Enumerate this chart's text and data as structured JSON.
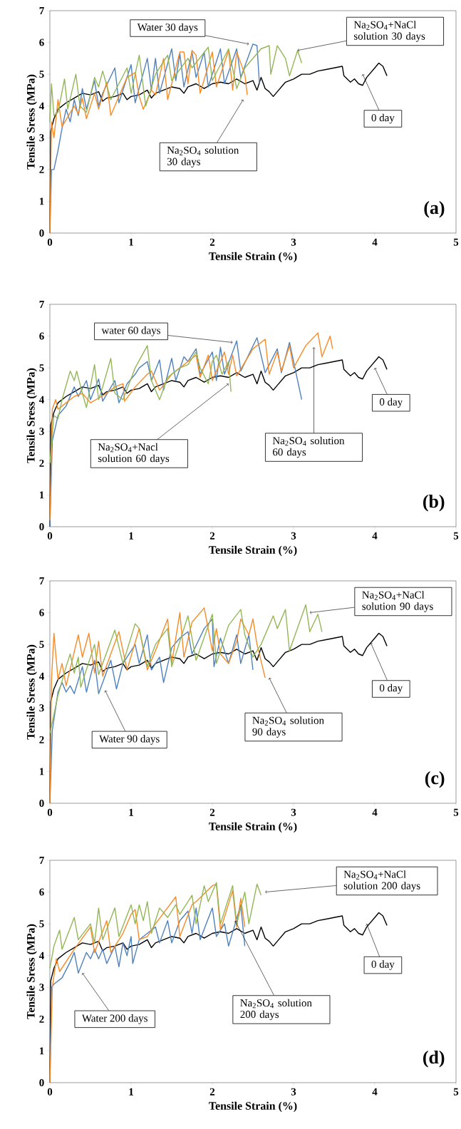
{
  "chart_data": [
    {
      "type": "line",
      "xlabel": "Tensile Strain (%)",
      "ylabel": "Tensile Sress (MPa)",
      "xlim": [
        0,
        5
      ],
      "ylim": [
        0,
        7
      ],
      "xticks": [
        0,
        1,
        2,
        3,
        4,
        5
      ],
      "yticks": [
        0,
        1,
        2,
        3,
        4,
        5,
        6,
        7
      ],
      "marker": "none",
      "series": [
        {
          "color": "#000000",
          "x": [
            0,
            0.01,
            0.05,
            0.1,
            0.2,
            0.3,
            0.4,
            0.5,
            0.6,
            0.65,
            0.7,
            0.8,
            0.9,
            0.95,
            1.0,
            1.1,
            1.2,
            1.25,
            1.3,
            1.4,
            1.5,
            1.6,
            1.65,
            1.7,
            1.8,
            1.9,
            2.0,
            2.1,
            2.2,
            2.3,
            2.4,
            2.5,
            2.55,
            2.6,
            2.65,
            2.7,
            2.75,
            2.8,
            2.9,
            3.0,
            3.1,
            3.2,
            3.3,
            3.4,
            3.5,
            3.6,
            3.62,
            3.7,
            3.75,
            3.8,
            3.85,
            3.9,
            4.0,
            4.05,
            4.1,
            4.15
          ],
          "values": [
            0,
            3.2,
            3.6,
            3.9,
            4.1,
            4.25,
            4.4,
            4.35,
            4.45,
            4.15,
            4.25,
            4.3,
            4.4,
            4.2,
            4.3,
            4.35,
            4.5,
            4.25,
            4.4,
            4.5,
            4.6,
            4.55,
            4.4,
            4.6,
            4.7,
            4.55,
            4.7,
            4.75,
            4.7,
            4.85,
            4.7,
            4.8,
            4.5,
            4.9,
            4.55,
            4.45,
            4.3,
            4.45,
            4.75,
            4.85,
            5.0,
            5.0,
            5.1,
            5.15,
            5.2,
            5.25,
            4.95,
            4.75,
            4.85,
            4.7,
            4.65,
            4.9,
            5.2,
            5.35,
            5.25,
            4.95
          ]
        },
        {
          "color": "#4f81bd",
          "x": [
            0,
            0.02,
            0.05,
            0.1,
            0.15,
            0.2,
            0.25,
            0.3,
            0.35,
            0.4,
            0.45,
            0.55,
            0.6,
            0.65,
            0.8,
            0.85,
            1.0,
            1.05,
            1.2,
            1.25,
            1.3,
            1.35,
            1.5,
            1.55,
            1.6,
            1.65,
            1.75,
            1.8,
            1.9,
            1.95,
            2.1,
            2.15,
            2.3,
            2.35,
            2.5,
            2.55,
            2.58
          ],
          "values": [
            0,
            2.0,
            2.0,
            2.6,
            3.3,
            3.9,
            3.5,
            4.2,
            3.7,
            4.55,
            3.9,
            4.8,
            4.0,
            4.4,
            5.2,
            4.1,
            5.3,
            4.1,
            5.5,
            4.5,
            5.5,
            4.4,
            5.8,
            4.8,
            5.65,
            4.6,
            5.7,
            4.9,
            5.7,
            4.6,
            5.8,
            4.7,
            5.8,
            4.9,
            5.95,
            5.9,
            4.7
          ]
        },
        {
          "color": "#f68b28",
          "x": [
            0,
            0.02,
            0.05,
            0.1,
            0.15,
            0.3,
            0.35,
            0.4,
            0.45,
            0.55,
            0.6,
            0.7,
            0.75,
            0.95,
            1.05,
            1.1,
            1.15,
            1.25,
            1.3,
            1.4,
            1.45,
            1.6,
            1.65,
            1.7,
            1.75,
            1.8,
            1.85,
            2.0,
            2.05,
            2.2,
            2.25,
            2.3,
            2.4,
            2.43
          ],
          "values": [
            0,
            3.5,
            3.0,
            4.2,
            3.35,
            4.0,
            3.75,
            4.25,
            3.6,
            4.4,
            3.9,
            4.75,
            3.7,
            4.9,
            5.05,
            4.3,
            3.9,
            4.5,
            4.35,
            5.5,
            4.2,
            5.7,
            5.7,
            4.7,
            5.75,
            5.6,
            4.4,
            5.7,
            4.6,
            5.75,
            4.5,
            5.7,
            5.0,
            4.35
          ]
        },
        {
          "color": "#93b656",
          "x": [
            0,
            0.02,
            0.05,
            0.1,
            0.18,
            0.22,
            0.32,
            0.37,
            0.45,
            0.55,
            0.6,
            0.65,
            0.75,
            0.95,
            1.0,
            1.1,
            1.18,
            1.3,
            1.45,
            1.5,
            1.7,
            1.75,
            1.95,
            2.0,
            2.2,
            2.3,
            2.4,
            2.6,
            2.7,
            2.72,
            2.8,
            2.9,
            2.95,
            3.05,
            3.1
          ],
          "values": [
            3.5,
            4.7,
            3.7,
            3.8,
            4.85,
            3.9,
            5.0,
            4.0,
            3.8,
            4.9,
            4.6,
            5.1,
            4.2,
            5.2,
            4.4,
            5.6,
            4.0,
            5.0,
            5.6,
            4.8,
            5.5,
            5.2,
            5.85,
            4.8,
            5.8,
            4.55,
            5.2,
            5.8,
            5.9,
            5.0,
            5.9,
            5.5,
            4.95,
            5.75,
            5.35
          ]
        }
      ],
      "annotations": [
        {
          "text": "Water 30 days",
          "x": 2.45,
          "y": 5.95
        },
        {
          "text": "Na$_{2}$SO$_{4}$+NaCl solution 30 days",
          "x": 3.05,
          "y": 5.75
        },
        {
          "text": "0 day",
          "x": 3.85,
          "y": 5.0
        },
        {
          "text": "Na$_{2}$SO$_{4}$ solution 30 days",
          "x": 2.38,
          "y": 4.2
        },
        "(a)"
      ]
    },
    {
      "type": "line",
      "xlabel": "Tensile Strain (%)",
      "ylabel": "Tensile Sress (MPa)",
      "xlim": [
        0,
        5
      ],
      "ylim": [
        0,
        7
      ],
      "xticks": [
        0,
        1,
        2,
        3,
        4,
        5
      ],
      "yticks": [
        0,
        1,
        2,
        3,
        4,
        5,
        6,
        7
      ],
      "marker": "none",
      "series": [
        {
          "color": "#000000",
          "x": [
            0,
            0.01,
            0.05,
            0.1,
            0.2,
            0.3,
            0.4,
            0.5,
            0.6,
            0.65,
            0.7,
            0.8,
            0.9,
            0.95,
            1.0,
            1.1,
            1.2,
            1.25,
            1.3,
            1.4,
            1.5,
            1.6,
            1.65,
            1.7,
            1.8,
            1.9,
            2.0,
            2.1,
            2.2,
            2.3,
            2.4,
            2.5,
            2.55,
            2.6,
            2.65,
            2.7,
            2.75,
            2.8,
            2.9,
            3.0,
            3.1,
            3.2,
            3.3,
            3.4,
            3.5,
            3.6,
            3.62,
            3.7,
            3.75,
            3.8,
            3.85,
            3.9,
            4.0,
            4.05,
            4.1,
            4.15
          ],
          "values": [
            0,
            3.2,
            3.6,
            3.9,
            4.1,
            4.25,
            4.4,
            4.35,
            4.45,
            4.15,
            4.25,
            4.3,
            4.4,
            4.2,
            4.3,
            4.35,
            4.5,
            4.25,
            4.4,
            4.5,
            4.6,
            4.55,
            4.4,
            4.6,
            4.7,
            4.55,
            4.7,
            4.75,
            4.7,
            4.85,
            4.7,
            4.8,
            4.5,
            4.9,
            4.55,
            4.45,
            4.3,
            4.45,
            4.75,
            4.85,
            5.0,
            5.0,
            5.1,
            5.15,
            5.2,
            5.25,
            4.95,
            4.75,
            4.85,
            4.7,
            4.65,
            4.9,
            5.2,
            5.35,
            5.25,
            4.95
          ]
        },
        {
          "color": "#4f81bd",
          "x": [
            0,
            0.03,
            0.1,
            0.2,
            0.3,
            0.35,
            0.45,
            0.5,
            0.6,
            0.65,
            0.8,
            0.85,
            0.95,
            1.05,
            1.1,
            1.2,
            1.25,
            1.35,
            1.4,
            1.5,
            1.55,
            1.65,
            1.7,
            1.8,
            1.85,
            2.0,
            2.05,
            2.1,
            2.15,
            2.3,
            2.35,
            2.55,
            2.65,
            2.8,
            2.85,
            2.95,
            3.0,
            3.1
          ],
          "values": [
            0,
            2.7,
            3.5,
            3.8,
            4.4,
            4.1,
            4.6,
            4.0,
            4.65,
            3.95,
            4.6,
            3.9,
            4.5,
            4.8,
            5.0,
            5.2,
            4.6,
            5.25,
            4.3,
            5.3,
            4.6,
            5.35,
            5.2,
            5.6,
            4.8,
            5.5,
            4.6,
            5.65,
            4.8,
            5.85,
            4.9,
            5.95,
            4.85,
            5.6,
            4.85,
            5.8,
            5.2,
            4.0
          ]
        },
        {
          "color": "#f68b28",
          "x": [
            0,
            0.03,
            0.07,
            0.1,
            0.2,
            0.3,
            0.4,
            0.5,
            0.6,
            0.7,
            0.8,
            0.9,
            0.92,
            1.05,
            1.2,
            1.25,
            1.35,
            1.5,
            1.7,
            1.8,
            1.85,
            1.95,
            2.0,
            2.15,
            2.2,
            2.25,
            2.3,
            2.5,
            2.65,
            2.7,
            2.8,
            2.85,
            2.95,
            3.0,
            3.15,
            3.3,
            3.35,
            3.45,
            3.48
          ],
          "values": [
            0.2,
            3.7,
            4.0,
            3.7,
            3.9,
            4.1,
            4.2,
            3.9,
            4.05,
            4.2,
            4.4,
            4.5,
            3.95,
            4.4,
            4.8,
            4.9,
            4.3,
            4.8,
            5.2,
            5.4,
            4.7,
            5.4,
            4.6,
            5.5,
            4.8,
            5.4,
            4.75,
            5.6,
            5.9,
            4.8,
            5.5,
            4.9,
            5.7,
            5.0,
            5.7,
            6.1,
            5.35,
            6.0,
            5.6
          ]
        },
        {
          "color": "#93b656",
          "x": [
            0,
            0.05,
            0.1,
            0.15,
            0.25,
            0.3,
            0.33,
            0.4,
            0.45,
            0.55,
            0.6,
            0.65,
            0.75,
            0.8,
            0.9,
            1.05,
            1.2,
            1.25,
            1.35,
            1.45,
            1.6,
            1.7,
            1.8,
            1.85,
            1.95,
            2.0,
            2.05,
            2.12,
            2.2,
            2.23
          ],
          "values": [
            2.0,
            3.5,
            3.4,
            4.0,
            4.9,
            4.6,
            4.9,
            4.2,
            3.75,
            5.1,
            4.0,
            4.4,
            5.3,
            4.2,
            4.0,
            5.0,
            5.7,
            4.6,
            4.0,
            4.7,
            5.0,
            5.1,
            5.5,
            5.0,
            4.5,
            5.2,
            5.4,
            4.8,
            5.2,
            4.25
          ]
        }
      ],
      "annotations": [
        {
          "text": "water 60 days",
          "x": 2.25,
          "y": 5.8
        },
        {
          "text": "Na$_{2}$SO$_{4}$+Nacl solution 60 days",
          "x": 2.2,
          "y": 4.5
        },
        {
          "text": "Na$_{2}$SO$_{4}$ solution 60 days",
          "x": 3.25,
          "y": 5.65
        },
        {
          "text": "0 day",
          "x": 4.0,
          "y": 5.0
        },
        "(b)"
      ]
    },
    {
      "type": "line",
      "xlabel": "Tensile Strain (%)",
      "ylabel": "Tensile Sress (MPa)",
      "xlim": [
        0,
        5
      ],
      "ylim": [
        0,
        7
      ],
      "xticks": [
        0,
        1,
        2,
        3,
        4,
        5
      ],
      "yticks": [
        0,
        1,
        2,
        3,
        4,
        5,
        6,
        7
      ],
      "marker": "none",
      "series": [
        {
          "color": "#000000",
          "x": [
            0,
            0.01,
            0.05,
            0.1,
            0.2,
            0.3,
            0.4,
            0.5,
            0.6,
            0.65,
            0.7,
            0.8,
            0.9,
            0.95,
            1.0,
            1.1,
            1.2,
            1.25,
            1.3,
            1.4,
            1.5,
            1.6,
            1.65,
            1.7,
            1.8,
            1.9,
            2.0,
            2.1,
            2.2,
            2.3,
            2.4,
            2.5,
            2.55,
            2.6,
            2.65,
            2.7,
            2.75,
            2.8,
            2.9,
            3.0,
            3.1,
            3.2,
            3.3,
            3.4,
            3.5,
            3.6,
            3.62,
            3.7,
            3.75,
            3.8,
            3.85,
            3.9,
            4.0,
            4.05,
            4.1,
            4.15
          ],
          "values": [
            0,
            3.2,
            3.6,
            3.9,
            4.1,
            4.25,
            4.4,
            4.35,
            4.45,
            4.15,
            4.25,
            4.3,
            4.4,
            4.2,
            4.3,
            4.35,
            4.5,
            4.25,
            4.4,
            4.5,
            4.6,
            4.55,
            4.4,
            4.6,
            4.7,
            4.55,
            4.7,
            4.75,
            4.7,
            4.85,
            4.7,
            4.8,
            4.5,
            4.9,
            4.55,
            4.45,
            4.3,
            4.45,
            4.75,
            4.85,
            5.0,
            5.0,
            5.1,
            5.15,
            5.2,
            5.25,
            4.95,
            4.75,
            4.85,
            4.7,
            4.65,
            4.9,
            5.2,
            5.35,
            5.25,
            4.95
          ]
        },
        {
          "color": "#4f81bd",
          "x": [
            0,
            0.03,
            0.1,
            0.15,
            0.2,
            0.25,
            0.3,
            0.4,
            0.45,
            0.55,
            0.6,
            0.75,
            0.82,
            0.9,
            1.05,
            1.1,
            1.2,
            1.25,
            1.35,
            1.4,
            1.5,
            1.6,
            1.7,
            1.75,
            1.9,
            2.0,
            2.02,
            2.1,
            2.2,
            2.3,
            2.35,
            2.45,
            2.5
          ],
          "values": [
            0,
            2.3,
            3.5,
            3.8,
            3.5,
            3.7,
            3.45,
            4.3,
            3.5,
            4.5,
            3.45,
            4.5,
            3.6,
            4.4,
            5.0,
            4.4,
            5.3,
            4.2,
            4.6,
            3.8,
            4.9,
            5.2,
            5.4,
            4.7,
            5.5,
            5.8,
            4.3,
            5.2,
            4.4,
            5.3,
            4.4,
            5.3,
            4.2
          ]
        },
        {
          "color": "#f68b28",
          "x": [
            0,
            0.02,
            0.05,
            0.1,
            0.15,
            0.2,
            0.35,
            0.4,
            0.48,
            0.55,
            0.6,
            0.65,
            0.85,
            0.95,
            1.1,
            1.2,
            1.3,
            1.45,
            1.5,
            1.6,
            1.65,
            1.75,
            1.9,
            2.0,
            2.05,
            2.1,
            2.2,
            2.3,
            2.35,
            2.45,
            2.5,
            2.55,
            2.65
          ],
          "values": [
            0,
            3.9,
            5.35,
            3.9,
            4.4,
            3.7,
            5.3,
            4.6,
            5.35,
            4.1,
            5.1,
            4.0,
            5.4,
            4.2,
            5.5,
            4.2,
            4.8,
            5.8,
            4.4,
            6.0,
            4.6,
            5.7,
            6.15,
            4.8,
            5.5,
            4.7,
            4.4,
            5.1,
            5.8,
            5.3,
            5.8,
            5.0,
            3.95
          ]
        },
        {
          "color": "#93b656",
          "x": [
            0,
            0.1,
            0.2,
            0.25,
            0.3,
            0.35,
            0.38,
            0.55,
            0.6,
            0.8,
            0.9,
            1.05,
            1.1,
            1.2,
            1.3,
            1.45,
            1.5,
            1.7,
            1.8,
            2.0,
            2.05,
            2.2,
            2.35,
            2.4,
            2.5,
            2.6,
            2.75,
            2.8,
            2.9,
            2.95,
            3.15,
            3.2,
            3.3,
            3.35
          ],
          "values": [
            2.2,
            3.4,
            4.3,
            4.7,
            4.1,
            4.6,
            3.65,
            5.0,
            4.05,
            5.45,
            4.4,
            5.65,
            5.5,
            4.3,
            5.0,
            5.5,
            4.3,
            5.9,
            4.5,
            5.95,
            4.4,
            5.6,
            6.1,
            5.3,
            4.6,
            5.0,
            5.9,
            5.5,
            6.1,
            4.8,
            6.25,
            5.4,
            5.95,
            5.4
          ]
        }
      ],
      "annotations": [
        {
          "text": "Na$_{2}$SO$_{4}$+NaCl solution 90 days",
          "x": 3.2,
          "y": 6.0
        },
        {
          "text": "0 day",
          "x": 3.95,
          "y": 5.05
        },
        {
          "text": "Na$_{2}$SO$_{4}$ solution 90 days",
          "x": 2.7,
          "y": 3.95
        },
        {
          "text": "Water 90 days",
          "x": 0.68,
          "y": 3.55
        },
        "(c)"
      ]
    },
    {
      "type": "line",
      "xlabel": "Tensile Strain (%)",
      "ylabel": "Tensile Sress (MPa)",
      "xlim": [
        0,
        5
      ],
      "ylim": [
        0,
        7
      ],
      "xticks": [
        0,
        1,
        2,
        3,
        4,
        5
      ],
      "yticks": [
        0,
        1,
        2,
        3,
        4,
        5,
        6,
        7
      ],
      "marker": "none",
      "series": [
        {
          "color": "#000000",
          "x": [
            0,
            0.01,
            0.05,
            0.1,
            0.2,
            0.3,
            0.4,
            0.5,
            0.6,
            0.65,
            0.7,
            0.8,
            0.9,
            0.95,
            1.0,
            1.1,
            1.2,
            1.25,
            1.3,
            1.4,
            1.5,
            1.6,
            1.65,
            1.7,
            1.8,
            1.9,
            2.0,
            2.1,
            2.2,
            2.3,
            2.4,
            2.5,
            2.55,
            2.6,
            2.65,
            2.7,
            2.75,
            2.8,
            2.9,
            3.0,
            3.1,
            3.2,
            3.3,
            3.4,
            3.5,
            3.6,
            3.62,
            3.7,
            3.75,
            3.8,
            3.85,
            3.9,
            4.0,
            4.05,
            4.1,
            4.15
          ],
          "values": [
            0,
            3.2,
            3.6,
            3.9,
            4.1,
            4.25,
            4.4,
            4.35,
            4.45,
            4.15,
            4.25,
            4.3,
            4.4,
            4.2,
            4.3,
            4.35,
            4.5,
            4.25,
            4.4,
            4.5,
            4.6,
            4.55,
            4.4,
            4.6,
            4.7,
            4.55,
            4.7,
            4.75,
            4.7,
            4.85,
            4.7,
            4.8,
            4.5,
            4.9,
            4.55,
            4.45,
            4.3,
            4.45,
            4.75,
            4.85,
            5.0,
            5.0,
            5.1,
            5.15,
            5.2,
            5.25,
            4.95,
            4.75,
            4.85,
            4.7,
            4.65,
            4.9,
            5.2,
            5.35,
            5.25,
            4.95
          ]
        },
        {
          "color": "#4f81bd",
          "x": [
            0,
            0.02,
            0.05,
            0.15,
            0.25,
            0.3,
            0.35,
            0.45,
            0.5,
            0.55,
            0.6,
            0.65,
            0.7,
            0.8,
            0.85,
            0.9,
            0.95,
            1.0,
            1.02,
            1.1,
            1.2,
            1.3,
            1.35,
            1.45,
            1.5,
            1.6,
            1.7,
            1.75,
            1.8,
            1.85,
            2.0,
            2.05,
            2.15,
            2.2,
            2.35,
            2.4
          ],
          "values": [
            0,
            3.0,
            3.1,
            3.3,
            3.8,
            4.1,
            3.45,
            4.1,
            3.9,
            4.2,
            3.9,
            4.2,
            3.75,
            4.3,
            3.65,
            4.4,
            4.0,
            4.6,
            3.75,
            4.5,
            4.7,
            4.9,
            4.4,
            5.1,
            4.4,
            5.1,
            5.4,
            4.7,
            5.5,
            4.5,
            5.5,
            4.6,
            5.0,
            4.3,
            5.6,
            4.3
          ]
        },
        {
          "color": "#f68b28",
          "x": [
            0,
            0.03,
            0.08,
            0.12,
            0.3,
            0.5,
            0.55,
            0.7,
            0.75,
            0.9,
            1.0,
            1.05,
            1.1,
            1.2,
            1.3,
            1.55,
            1.6,
            1.75,
            1.8,
            2.0,
            2.05,
            2.1,
            2.25,
            2.3,
            2.35,
            2.4
          ],
          "values": [
            0,
            3.0,
            3.9,
            3.5,
            4.2,
            4.9,
            4.1,
            5.1,
            4.1,
            4.7,
            5.3,
            5.45,
            4.5,
            4.6,
            5.0,
            5.85,
            4.6,
            5.6,
            5.7,
            6.2,
            6.25,
            4.8,
            6.05,
            4.9,
            5.8,
            4.9
          ]
        },
        {
          "color": "#93b656",
          "x": [
            0,
            0.05,
            0.12,
            0.15,
            0.3,
            0.35,
            0.5,
            0.55,
            0.6,
            0.65,
            0.8,
            0.85,
            1.0,
            1.05,
            1.1,
            1.15,
            1.2,
            1.25,
            1.35,
            1.45,
            1.55,
            1.6,
            1.75,
            1.8,
            1.9,
            1.95,
            2.05,
            2.1,
            2.25,
            2.3,
            2.4,
            2.45,
            2.55,
            2.6
          ],
          "values": [
            3.6,
            4.3,
            4.8,
            4.2,
            5.2,
            4.5,
            5.0,
            4.4,
            5.5,
            4.5,
            5.5,
            4.6,
            5.6,
            5.0,
            5.6,
            5.1,
            5.7,
            4.7,
            5.5,
            5.2,
            5.6,
            5.3,
            5.9,
            5.0,
            6.2,
            5.7,
            6.3,
            5.0,
            6.2,
            5.0,
            6.0,
            5.0,
            6.25,
            5.9
          ]
        }
      ],
      "annotations": [
        {
          "text": "Na$_{2}$SO$_{4}$+NaCl solution 200 days",
          "x": 2.65,
          "y": 6.0
        },
        {
          "text": "0 day",
          "x": 3.9,
          "y": 5.0
        },
        {
          "text": "Na$_{2}$SO$_{4}$ solution 200 days",
          "x": 2.28,
          "y": 5.1
        },
        {
          "text": "Water 200 days",
          "x": 0.4,
          "y": 3.45
        },
        "(d)"
      ]
    }
  ]
}
